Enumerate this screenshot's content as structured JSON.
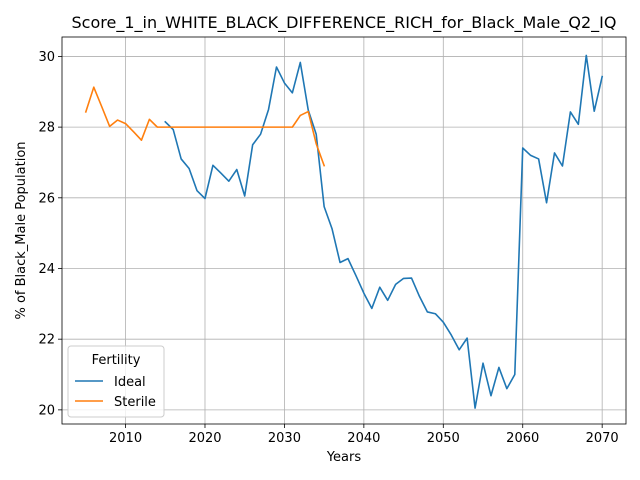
{
  "chart_data": {
    "type": "line",
    "title": "Score_1_in_WHITE_BLACK_DIFFERENCE_RICH_for_Black_Male_Q2_IQ",
    "xlabel": "Years",
    "ylabel": "% of Black_Male Population",
    "xlim": [
      2002,
      2073
    ],
    "ylim": [
      19.6,
      30.55
    ],
    "xticks": [
      2010,
      2020,
      2030,
      2040,
      2050,
      2060,
      2070
    ],
    "yticks": [
      20,
      22,
      24,
      26,
      28,
      30
    ],
    "grid": true,
    "legend": {
      "title": "Fertility",
      "placement": "lower-left"
    },
    "series": [
      {
        "name": "Ideal",
        "color": "#1f77b4",
        "x": [
          2015,
          2016,
          2017,
          2018,
          2019,
          2020,
          2021,
          2022,
          2023,
          2024,
          2025,
          2026,
          2027,
          2028,
          2029,
          2030,
          2031,
          2032,
          2033,
          2034,
          2035,
          2036,
          2037,
          2038,
          2039,
          2040,
          2041,
          2042,
          2043,
          2044,
          2045,
          2046,
          2047,
          2048,
          2049,
          2050,
          2051,
          2052,
          2053,
          2054,
          2055,
          2056,
          2057,
          2058,
          2059,
          2060,
          2061,
          2062,
          2063,
          2064,
          2065,
          2066,
          2067,
          2068,
          2069,
          2070
        ],
        "values": [
          28.15,
          27.93,
          27.1,
          26.83,
          26.2,
          25.98,
          26.92,
          26.7,
          26.47,
          26.8,
          26.05,
          27.5,
          27.8,
          28.5,
          29.7,
          29.25,
          28.97,
          29.83,
          28.48,
          27.8,
          25.75,
          25.12,
          24.17,
          24.28,
          23.8,
          23.3,
          22.87,
          23.47,
          23.1,
          23.55,
          23.72,
          23.73,
          23.21,
          22.77,
          22.72,
          22.48,
          22.12,
          21.7,
          22.03,
          20.05,
          21.32,
          20.4,
          21.2,
          20.6,
          21.0,
          27.41,
          27.2,
          27.1,
          25.86,
          27.27,
          26.9,
          28.43,
          28.08,
          30.03,
          28.45,
          29.43
        ]
      },
      {
        "name": "Sterile",
        "color": "#ff7f0e",
        "x": [
          2005,
          2006,
          2007,
          2008,
          2009,
          2010,
          2011,
          2012,
          2013,
          2014,
          2015,
          2016,
          2017,
          2018,
          2019,
          2020,
          2021,
          2022,
          2023,
          2024,
          2025,
          2026,
          2027,
          2028,
          2029,
          2030,
          2031,
          2032,
          2033,
          2034,
          2035
        ],
        "values": [
          28.43,
          29.13,
          28.58,
          28.02,
          28.2,
          28.1,
          27.87,
          27.63,
          28.22,
          28.0,
          28.0,
          28.0,
          28.0,
          28.0,
          28.0,
          28.0,
          28.0,
          28.0,
          28.0,
          28.0,
          28.0,
          28.0,
          28.0,
          28.0,
          28.0,
          28.0,
          28.0,
          28.33,
          28.44,
          27.53,
          26.91
        ]
      }
    ]
  }
}
